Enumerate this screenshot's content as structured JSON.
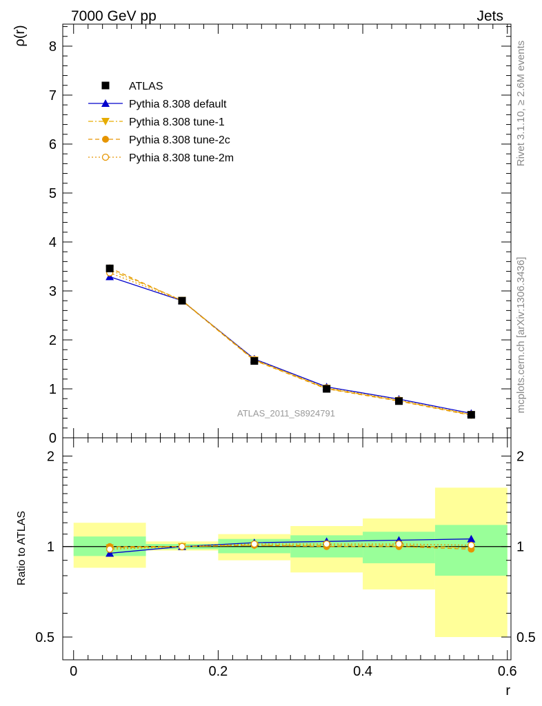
{
  "header": {
    "left": "7000 GeV pp",
    "right": "Jets"
  },
  "side_labels": {
    "rivet": "Rivet 3.1.10, ≥ 2.6M events",
    "mcplots": "mcplots.cern.ch [arXiv:1306.3436]"
  },
  "analysis_label": "ATLAS_2011_S8924791",
  "chart_data": [
    {
      "type": "line",
      "panel": "main",
      "ylabel": "ρ(r)",
      "xlim": [
        -0.015,
        0.605
      ],
      "ylim": [
        0,
        8.45
      ],
      "yticks": [
        0,
        1,
        2,
        3,
        4,
        5,
        6,
        7,
        8
      ],
      "ytick_labels": [
        "0",
        "1",
        "2",
        "3",
        "4",
        "5",
        "6",
        "7",
        "8"
      ],
      "x": [
        0.05,
        0.15,
        0.25,
        0.35,
        0.45,
        0.55
      ],
      "legend_position": "top-left",
      "series": [
        {
          "name": "ATLAS",
          "values": [
            3.46,
            2.8,
            1.57,
            1.0,
            0.75,
            0.47
          ],
          "color": "#000000",
          "marker": "square",
          "line": "none"
        },
        {
          "name": "Pythia 8.308 default",
          "values": [
            3.29,
            2.8,
            1.61,
            1.04,
            0.79,
            0.5
          ],
          "color": "#0000cc",
          "marker": "triangle-up",
          "line": "solid"
        },
        {
          "name": "Pythia 8.308 tune-1",
          "values": [
            3.43,
            2.81,
            1.59,
            1.01,
            0.76,
            0.47
          ],
          "color": "#e6ac00",
          "marker": "triangle-down",
          "line": "dashdot"
        },
        {
          "name": "Pythia 8.308 tune-2c",
          "values": [
            3.47,
            2.8,
            1.58,
            1.0,
            0.75,
            0.46
          ],
          "color": "#e69500",
          "marker": "circle-filled",
          "line": "dashed"
        },
        {
          "name": "Pythia 8.308 tune-2m",
          "values": [
            3.37,
            2.8,
            1.6,
            1.02,
            0.77,
            0.48
          ],
          "color": "#e69500",
          "marker": "circle-open",
          "line": "dotted"
        }
      ]
    },
    {
      "type": "line",
      "panel": "ratio",
      "xlabel": "r",
      "ylabel": "Ratio to ATLAS",
      "yscale": "log",
      "xlim": [
        -0.015,
        0.605
      ],
      "ylim": [
        0.42,
        2.3
      ],
      "xticks": [
        0,
        0.2,
        0.4,
        0.6
      ],
      "xtick_labels": [
        "0",
        "0.2",
        "0.4",
        "0.6"
      ],
      "yticks": [
        0.5,
        1,
        2
      ],
      "ytick_labels": [
        "0.5",
        "1",
        "2"
      ],
      "x": [
        0.05,
        0.15,
        0.25,
        0.35,
        0.45,
        0.55
      ],
      "bins": [
        [
          0.0,
          0.1
        ],
        [
          0.1,
          0.2
        ],
        [
          0.2,
          0.3
        ],
        [
          0.3,
          0.4
        ],
        [
          0.4,
          0.5
        ],
        [
          0.5,
          0.6
        ]
      ],
      "band_inner": {
        "color": "#99ff99",
        "lo": [
          0.93,
          0.98,
          0.95,
          0.92,
          0.88,
          0.8
        ],
        "hi": [
          1.08,
          1.02,
          1.06,
          1.09,
          1.12,
          1.18
        ]
      },
      "band_outer": {
        "color": "#ffff99",
        "lo": [
          0.85,
          0.97,
          0.9,
          0.82,
          0.72,
          0.5
        ],
        "hi": [
          1.2,
          1.04,
          1.1,
          1.17,
          1.24,
          1.57
        ]
      },
      "series": [
        {
          "name": "Pythia 8.308 default",
          "values": [
            0.95,
            1.0,
            1.03,
            1.04,
            1.05,
            1.06
          ],
          "color": "#0000cc",
          "marker": "triangle-up",
          "line": "solid"
        },
        {
          "name": "Pythia 8.308 tune-1",
          "values": [
            0.99,
            1.0,
            1.01,
            1.01,
            1.01,
            0.99
          ],
          "color": "#e6ac00",
          "marker": "triangle-down",
          "line": "dashdot"
        },
        {
          "name": "Pythia 8.308 tune-2c",
          "values": [
            1.0,
            1.0,
            1.01,
            1.0,
            1.0,
            0.98
          ],
          "color": "#e69500",
          "marker": "circle-filled",
          "line": "dashed"
        },
        {
          "name": "Pythia 8.308 tune-2m",
          "values": [
            0.98,
            1.0,
            1.02,
            1.02,
            1.02,
            1.01
          ],
          "color": "#e69500",
          "marker": "circle-open",
          "line": "dotted"
        }
      ]
    }
  ]
}
